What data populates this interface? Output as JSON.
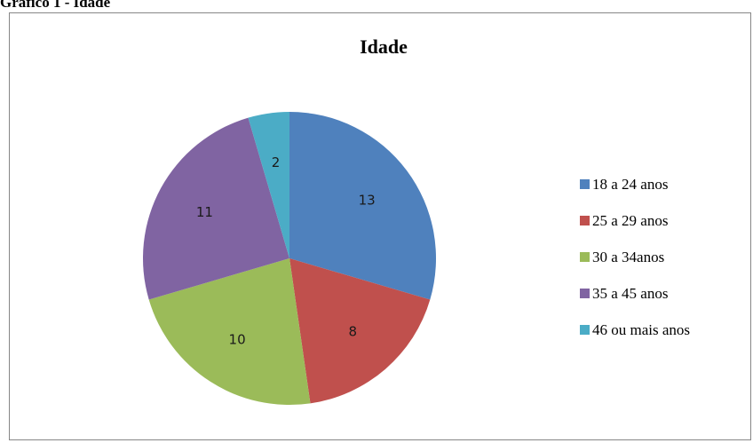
{
  "caption": "Grafico 1 - Idade",
  "chart_data": {
    "type": "pie",
    "title": "Idade",
    "categories": [
      "18 a 24 anos",
      "25 a 29 anos",
      "30 a 34anos",
      "35 a 45 anos",
      "46 ou mais anos"
    ],
    "values": [
      13,
      8,
      10,
      11,
      2
    ],
    "colors": [
      "#4f81bd",
      "#c0504d",
      "#9bbb59",
      "#8064a2",
      "#4bacc6"
    ],
    "legend": "right",
    "data_labels": true
  }
}
